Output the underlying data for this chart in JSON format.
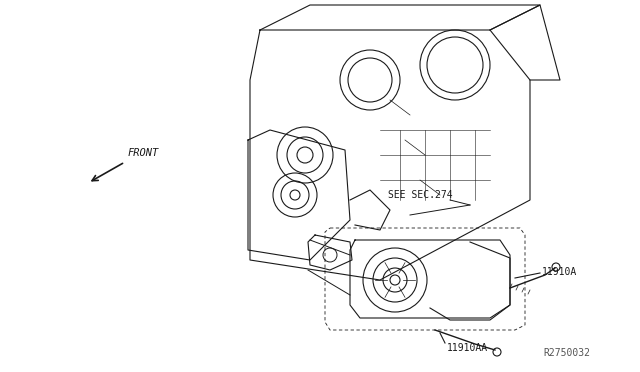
{
  "bg_color": "#ffffff",
  "line_color": "#1a1a1a",
  "diagram_ref": "R2750032",
  "front_label": "FRONT",
  "see_sec_label": "SEE SEC.274",
  "part1_label": "11910A",
  "part2_label": "11910AA",
  "fig_width": 6.4,
  "fig_height": 3.72,
  "dpi": 100
}
